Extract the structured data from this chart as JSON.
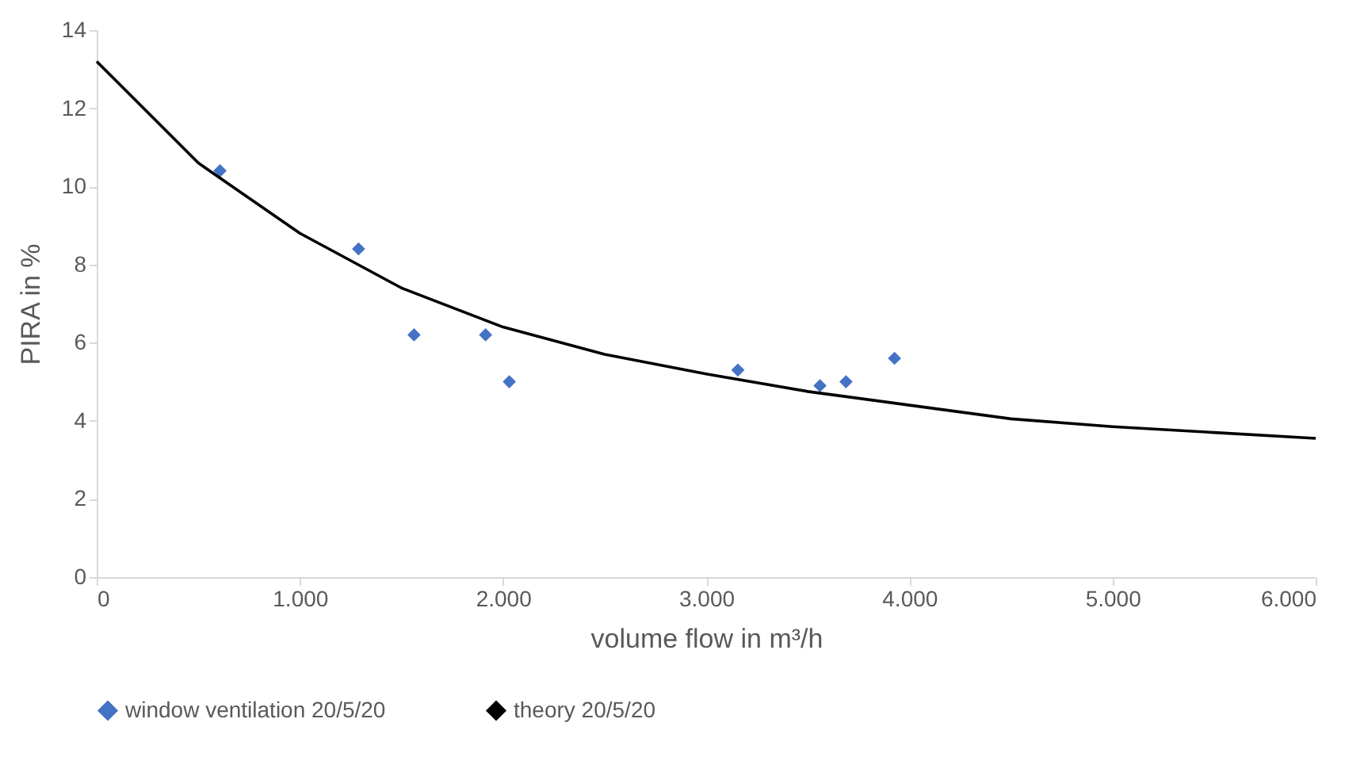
{
  "chart_data": {
    "type": "scatter",
    "xlabel": "volume flow in m³/h",
    "ylabel": "PIRA in %",
    "xlim": [
      0,
      6000
    ],
    "ylim": [
      0,
      14
    ],
    "xticks": [
      {
        "value": 0,
        "label": "0"
      },
      {
        "value": 1000,
        "label": "1.000"
      },
      {
        "value": 2000,
        "label": "2.000"
      },
      {
        "value": 3000,
        "label": "3.000"
      },
      {
        "value": 4000,
        "label": "4.000"
      },
      {
        "value": 5000,
        "label": "5.000"
      },
      {
        "value": 6000,
        "label": "6.000"
      }
    ],
    "yticks": [
      0,
      2,
      4,
      6,
      8,
      10,
      12,
      14
    ],
    "grid": false,
    "legend": "bottom",
    "series": [
      {
        "name": "window ventilation 20/5/20",
        "marker": "diamond",
        "color": "#4472c4",
        "x": [
          607,
          1289,
          1562,
          1914,
          2031,
          3156,
          3560,
          3688,
          3927
        ],
        "values": [
          10.4,
          8.4,
          6.2,
          6.2,
          5.0,
          5.3,
          4.9,
          5.0,
          5.6
        ]
      },
      {
        "name": "theory 20/5/20",
        "type": "line",
        "marker": "none",
        "color": "#000000",
        "x": [
          0,
          500,
          1000,
          1500,
          2000,
          2500,
          3000,
          3500,
          4000,
          4500,
          5000,
          5500,
          6000
        ],
        "values": [
          13.2,
          10.6,
          8.8,
          7.4,
          6.4,
          5.7,
          5.2,
          4.75,
          4.4,
          4.05,
          3.85,
          3.7,
          3.55
        ]
      }
    ]
  }
}
